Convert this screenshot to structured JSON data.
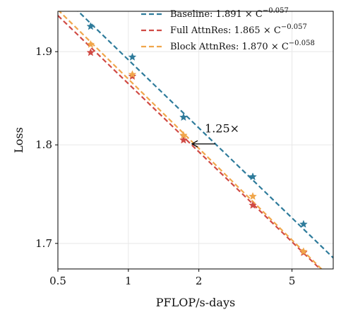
{
  "chart_data": {
    "type": "scatter",
    "xlabel": "PFLOP/s-days",
    "ylabel": "Loss",
    "x_scale": "log",
    "y_scale": "log",
    "xlim": [
      0.5,
      7.5
    ],
    "ylim": [
      1.675,
      1.945
    ],
    "x_ticks": [
      {
        "value": 0.5,
        "label": "0.5"
      },
      {
        "value": 1,
        "label": "1"
      },
      {
        "value": 2,
        "label": "2"
      },
      {
        "value": 5,
        "label": "5"
      }
    ],
    "y_ticks": [
      {
        "value": 1.7,
        "label": "1.7"
      },
      {
        "value": 1.8,
        "label": "1.8"
      },
      {
        "value": 1.9,
        "label": "1.9"
      }
    ],
    "grid": true,
    "legend_position": "top-right",
    "series": [
      {
        "name": "Baseline",
        "legend_prefix": "Baseline: 1.891 × C",
        "legend_exponent": "−0.057",
        "color": "#2e7b9b",
        "fit": {
          "a": 1.891,
          "b": -0.057
        },
        "points": [
          {
            "x": 0.69,
            "y": 1.928
          },
          {
            "x": 1.04,
            "y": 1.894
          },
          {
            "x": 1.72,
            "y": 1.829
          },
          {
            "x": 3.4,
            "y": 1.767
          },
          {
            "x": 5.6,
            "y": 1.719
          }
        ]
      },
      {
        "name": "Full AttnRes",
        "legend_prefix": "Full AttnRes: 1.865 × C",
        "legend_exponent": "−0.057",
        "color": "#d04a44",
        "fit": {
          "a": 1.865,
          "b": -0.057
        },
        "points": [
          {
            "x": 0.69,
            "y": 1.899
          },
          {
            "x": 1.04,
            "y": 1.873
          },
          {
            "x": 1.72,
            "y": 1.805
          },
          {
            "x": 3.4,
            "y": 1.738
          },
          {
            "x": 5.6,
            "y": 1.691
          }
        ]
      },
      {
        "name": "Block AttnRes",
        "legend_prefix": "Block AttnRes: 1.870 × C",
        "legend_exponent": "−0.058",
        "color": "#f0a64b",
        "fit": {
          "a": 1.87,
          "b": -0.058
        },
        "points": [
          {
            "x": 0.69,
            "y": 1.908
          },
          {
            "x": 1.04,
            "y": 1.875
          },
          {
            "x": 1.72,
            "y": 1.81
          },
          {
            "x": 3.4,
            "y": 1.747
          },
          {
            "x": 5.6,
            "y": 1.692
          }
        ]
      }
    ],
    "annotation": {
      "text": "1.25×",
      "arrow_from": {
        "x": 2.35,
        "y": 1.801
      },
      "arrow_to": {
        "x": 1.87,
        "y": 1.801
      },
      "text_at": {
        "x": 2.12,
        "y": 1.813
      }
    }
  }
}
